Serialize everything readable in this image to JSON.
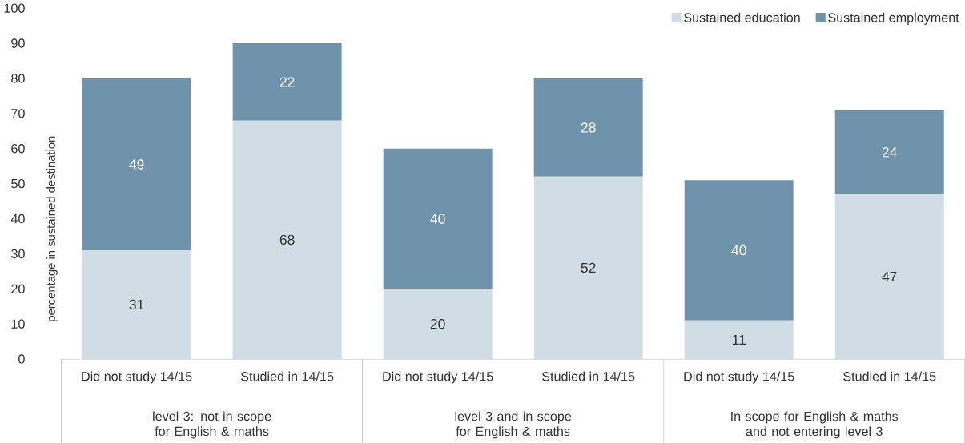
{
  "chart_data": {
    "type": "bar",
    "stacked": true,
    "ylabel": "percentage in sustained destination",
    "categories": [
      "Did not study 14/15",
      "Studied in 14/15",
      "Did not study 14/15",
      "Studied in 14/15",
      "Did not study 14/15",
      "Studied in 14/15"
    ],
    "series": [
      {
        "name": "Sustained education",
        "color": "#d0dde5",
        "values": [
          31,
          68,
          20,
          52,
          11,
          47
        ]
      },
      {
        "name": "Sustained employment",
        "color": "#6f93ab",
        "values": [
          49,
          22,
          40,
          28,
          40,
          24
        ]
      }
    ],
    "ylim": [
      0,
      100
    ],
    "yticks": [
      0,
      10,
      20,
      30,
      40,
      50,
      60,
      70,
      80,
      90,
      100
    ],
    "data_labels": true,
    "legend": "top right",
    "annotations": [
      "level 3: not in scope for English & maths",
      "level 3 and in scope for English & maths",
      "In scope for English & maths and not entering level 3"
    ]
  }
}
